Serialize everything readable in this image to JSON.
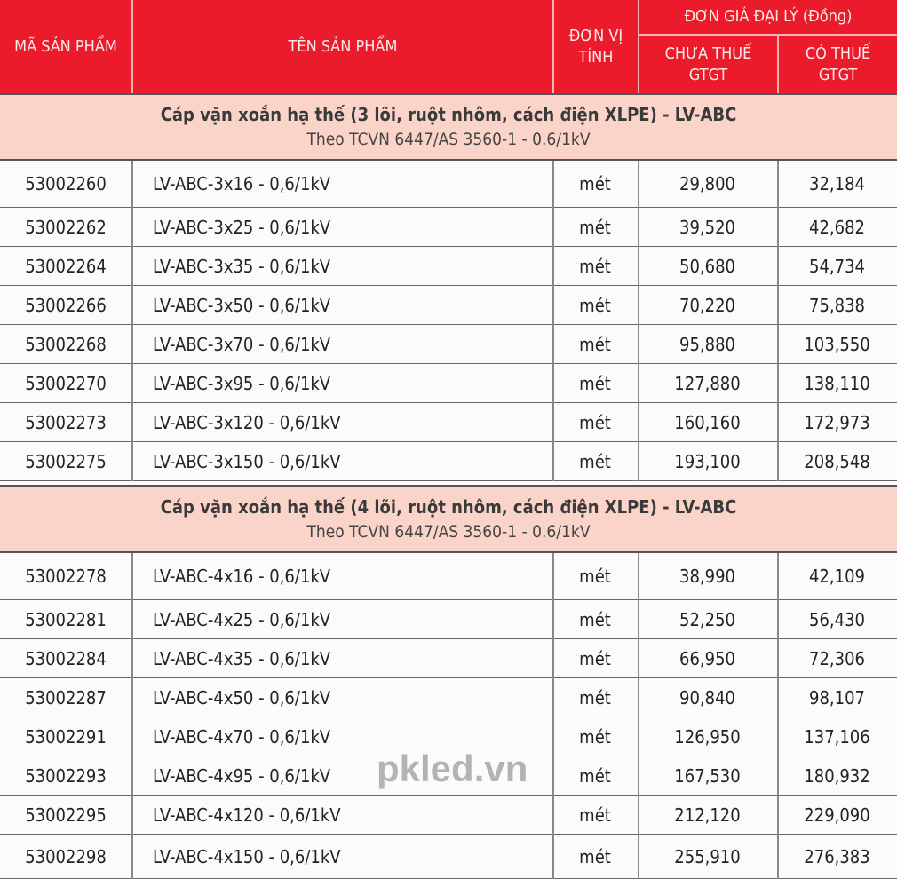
{
  "header": {
    "code": "MÃ SẢN PHẨM",
    "name": "TÊN SẢN PHẨM",
    "unit": "ĐƠN VỊ TÍNH",
    "price_group": "ĐƠN GIÁ ĐẠI LÝ (Đồng)",
    "price_excl": "CHƯA THUẾ GTGT",
    "price_incl": "CÓ THUẾ GTGT"
  },
  "sections": [
    {
      "title": "Cáp vặn xoắn hạ thế (3 lõi, ruột nhôm, cách điện XLPE) - LV-ABC",
      "subtitle": "Theo TCVN 6447/AS 3560-1 - 0.6/1kV",
      "rows": [
        [
          "53002260",
          "LV-ABC-3x16 - 0,6/1kV",
          "mét",
          "29,800",
          "32,184"
        ],
        [
          "53002262",
          "LV-ABC-3x25 - 0,6/1kV",
          "mét",
          "39,520",
          "42,682"
        ],
        [
          "53002264",
          "LV-ABC-3x35 - 0,6/1kV",
          "mét",
          "50,680",
          "54,734"
        ],
        [
          "53002266",
          "LV-ABC-3x50 - 0,6/1kV",
          "mét",
          "70,220",
          "75,838"
        ],
        [
          "53002268",
          "LV-ABC-3x70 - 0,6/1kV",
          "mét",
          "95,880",
          "103,550"
        ],
        [
          "53002270",
          "LV-ABC-3x95 - 0,6/1kV",
          "mét",
          "127,880",
          "138,110"
        ],
        [
          "53002273",
          "LV-ABC-3x120 - 0,6/1kV",
          "mét",
          "160,160",
          "172,973"
        ],
        [
          "53002275",
          "LV-ABC-3x150 - 0,6/1kV",
          "mét",
          "193,100",
          "208,548"
        ]
      ]
    },
    {
      "title": "Cáp vặn xoắn hạ thế (4 lõi, ruột nhôm, cách điện XLPE) - LV-ABC",
      "subtitle": "Theo TCVN 6447/AS 3560-1 - 0.6/1kV",
      "rows": [
        [
          "53002278",
          "LV-ABC-4x16 - 0,6/1kV",
          "mét",
          "38,990",
          "42,109"
        ],
        [
          "53002281",
          "LV-ABC-4x25 - 0,6/1kV",
          "mét",
          "52,250",
          "56,430"
        ],
        [
          "53002284",
          "LV-ABC-4x35 - 0,6/1kV",
          "mét",
          "66,950",
          "72,306"
        ],
        [
          "53002287",
          "LV-ABC-4x50 - 0,6/1kV",
          "mét",
          "90,840",
          "98,107"
        ],
        [
          "53002291",
          "LV-ABC-4x70 - 0,6/1kV",
          "mét",
          "126,950",
          "137,106"
        ],
        [
          "53002293",
          "LV-ABC-4x95 - 0,6/1kV",
          "mét",
          "167,530",
          "180,932"
        ],
        [
          "53002295",
          "LV-ABC-4x120 - 0,6/1kV",
          "mét",
          "212,120",
          "229,090"
        ],
        [
          "53002298",
          "LV-ABC-4x150 - 0,6/1kV",
          "mét",
          "255,910",
          "276,383"
        ]
      ]
    }
  ],
  "watermark": "pkled.vn",
  "colors": {
    "header_bg": "#ec1b2b",
    "section_bg": "#fbd4c9"
  }
}
